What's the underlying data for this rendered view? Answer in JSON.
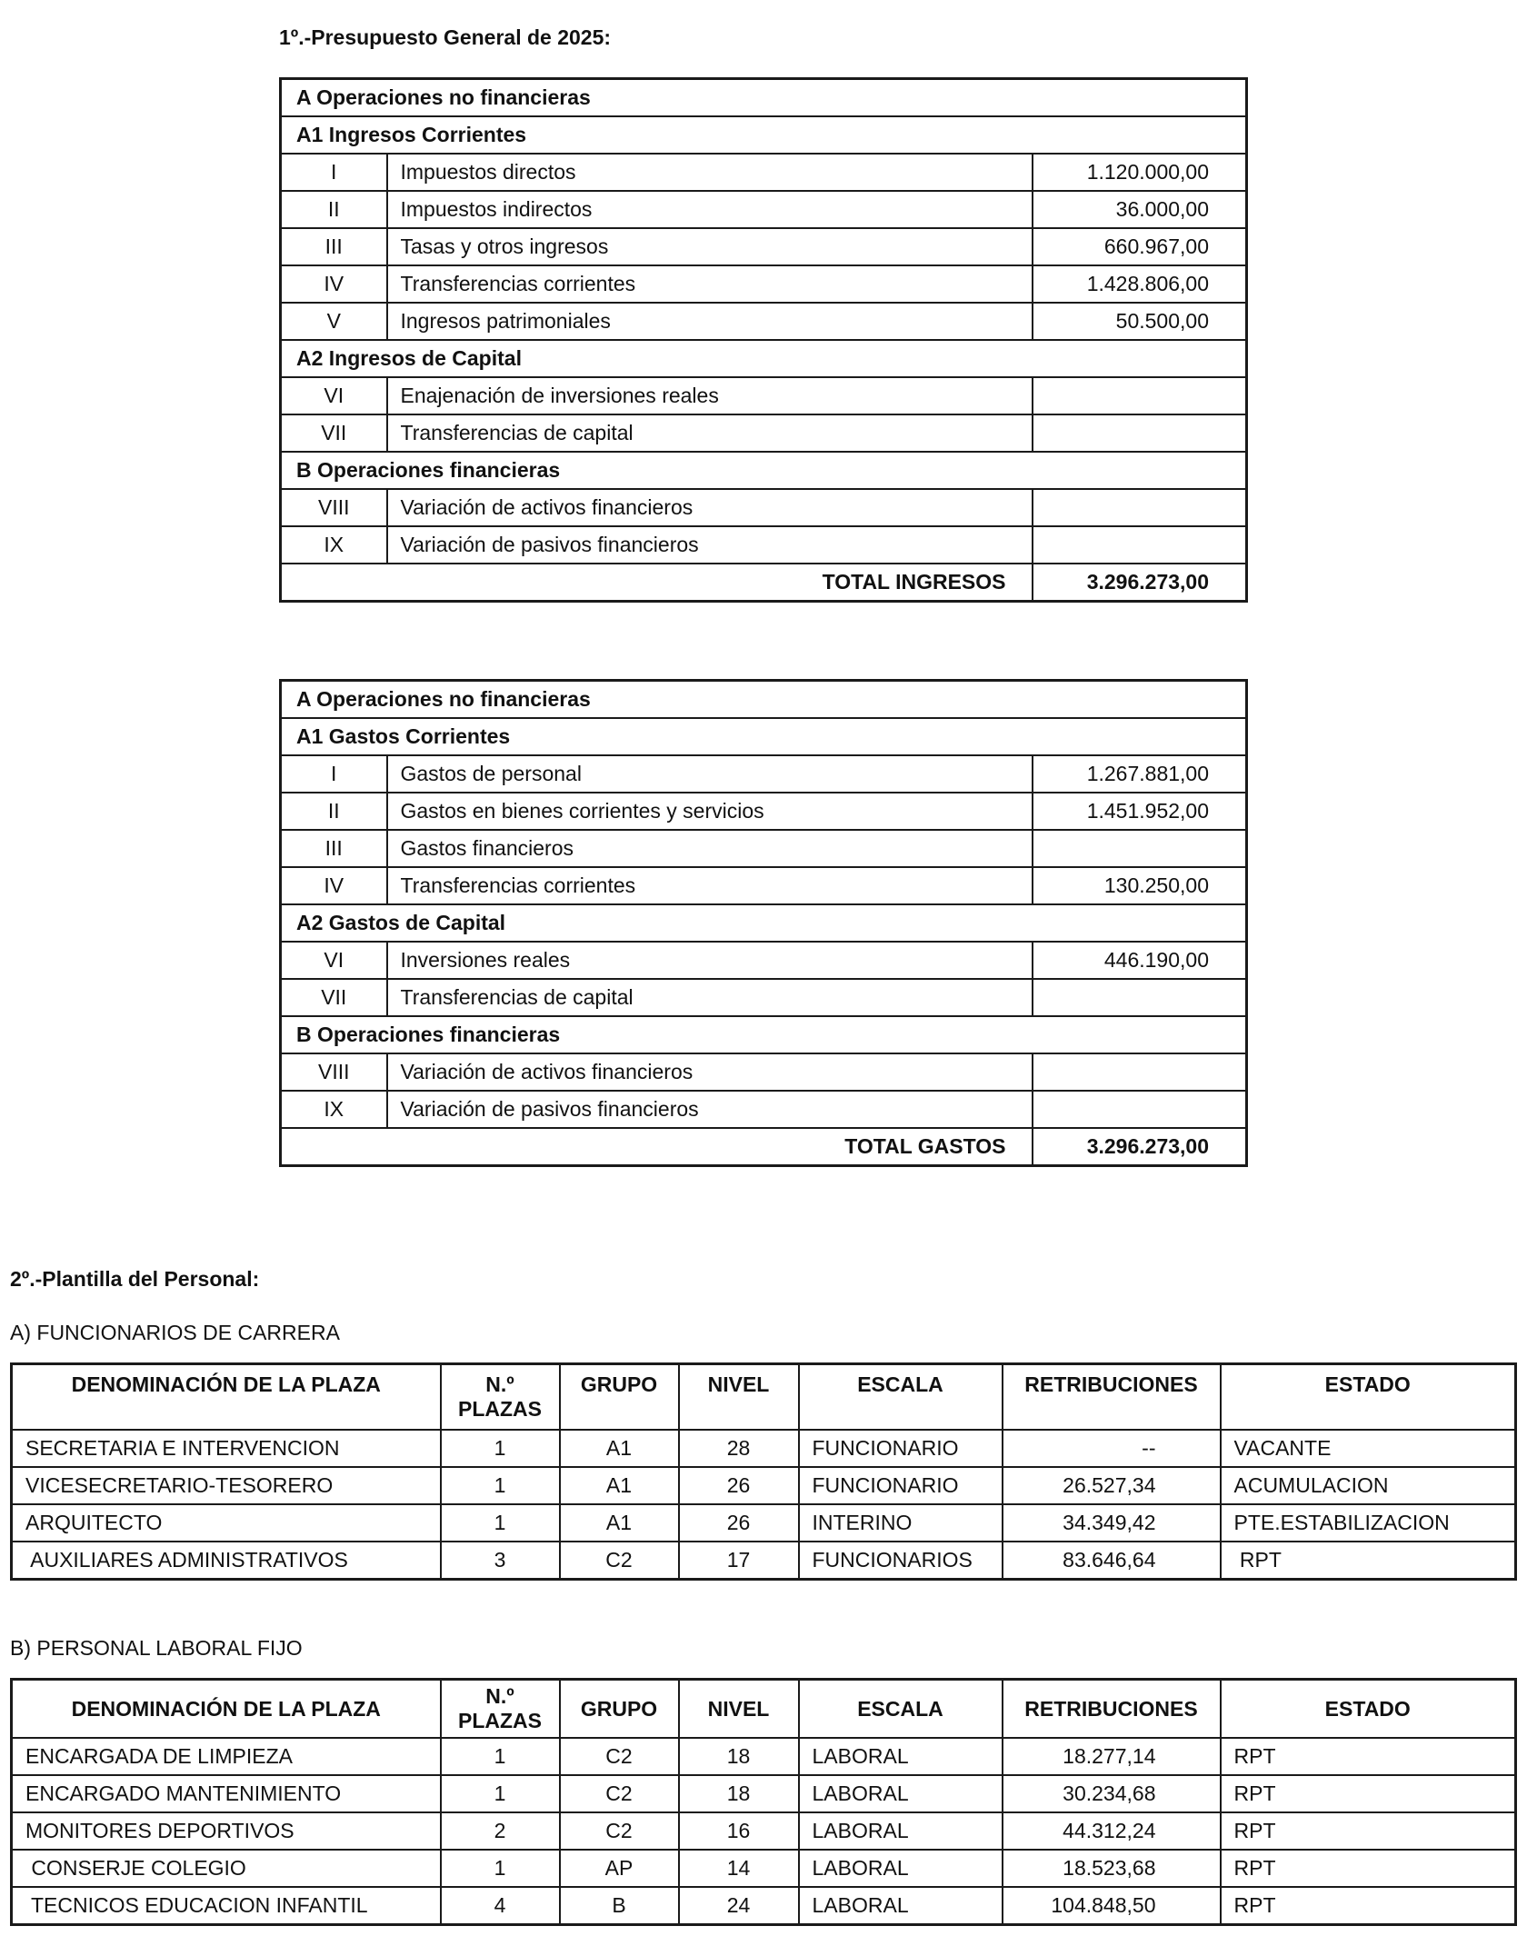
{
  "section1_title": "1º.-Presupuesto General de 2025:",
  "ingresos": {
    "rows": [
      {
        "type": "section",
        "label": "A  Operaciones no financieras"
      },
      {
        "type": "section",
        "label": "A1  Ingresos Corrientes"
      },
      {
        "type": "item",
        "code": "I",
        "desc": "Impuestos directos",
        "amount": "1.120.000,00"
      },
      {
        "type": "item",
        "code": "II",
        "desc": "Impuestos indirectos",
        "amount": "36.000,00"
      },
      {
        "type": "item",
        "code": "III",
        "desc": "Tasas y otros ingresos",
        "amount": "660.967,00"
      },
      {
        "type": "item",
        "code": "IV",
        "desc": "Transferencias corrientes",
        "amount": "1.428.806,00"
      },
      {
        "type": "item",
        "code": "V",
        "desc": "Ingresos patrimoniales",
        "amount": "50.500,00"
      },
      {
        "type": "section",
        "label": "A2  Ingresos de Capital"
      },
      {
        "type": "item",
        "code": "VI",
        "desc": "Enajenación de inversiones reales",
        "amount": ""
      },
      {
        "type": "item",
        "code": "VII",
        "desc": "Transferencias de capital",
        "amount": ""
      },
      {
        "type": "section",
        "label": "B  Operaciones financieras"
      },
      {
        "type": "item",
        "code": "VIII",
        "desc": "Variación de activos financieros",
        "amount": ""
      },
      {
        "type": "item",
        "code": "IX",
        "desc": "Variación de pasivos financieros",
        "amount": ""
      }
    ],
    "total_label": "TOTAL INGRESOS",
    "total": "3.296.273,00"
  },
  "gastos": {
    "rows": [
      {
        "type": "section",
        "label": "A  Operaciones no financieras"
      },
      {
        "type": "section",
        "label": "A1  Gastos Corrientes"
      },
      {
        "type": "item",
        "code": "I",
        "desc": "Gastos de personal",
        "amount": "1.267.881,00"
      },
      {
        "type": "item",
        "code": "II",
        "desc": "Gastos en bienes corrientes y servicios",
        "amount": "1.451.952,00"
      },
      {
        "type": "item",
        "code": "III",
        "desc": "Gastos financieros",
        "amount": ""
      },
      {
        "type": "item",
        "code": "IV",
        "desc": "Transferencias corrientes",
        "amount": "130.250,00"
      },
      {
        "type": "section",
        "label": "A2  Gastos de Capital"
      },
      {
        "type": "item",
        "code": "VI",
        "desc": "Inversiones reales",
        "amount": "446.190,00"
      },
      {
        "type": "item",
        "code": "VII",
        "desc": "Transferencias de capital",
        "amount": ""
      },
      {
        "type": "section",
        "label": "B  Operaciones financieras"
      },
      {
        "type": "item",
        "code": "VIII",
        "desc": "Variación de activos financieros",
        "amount": ""
      },
      {
        "type": "item",
        "code": "IX",
        "desc": "Variación de pasivos financieros",
        "amount": ""
      }
    ],
    "total_label": "TOTAL GASTOS",
    "total": "3.296.273,00"
  },
  "section2_title": "2º.-Plantilla del Personal:",
  "staff_headers": [
    "DENOMINACIÓN DE LA PLAZA",
    "N.º PLAZAS",
    "GRUPO",
    "NIVEL",
    "ESCALA",
    "RETRIBUCIONES",
    "ESTADO"
  ],
  "funcionarios": {
    "label": "A)  FUNCIONARIOS DE CARRERA",
    "rows": [
      [
        "SECRETARIA E INTERVENCION",
        "1",
        "A1",
        "28",
        "FUNCIONARIO",
        "--",
        "VACANTE"
      ],
      [
        "VICESECRETARIO-TESORERO",
        "1",
        "A1",
        "26",
        "FUNCIONARIO",
        "26.527,34",
        "ACUMULACION"
      ],
      [
        "ARQUITECTO",
        "1",
        "A1",
        "26",
        "INTERINO",
        "34.349,42",
        "PTE.ESTABILIZACION"
      ],
      [
        " AUXILIARES ADMINISTRATIVOS",
        "3",
        "C2",
        "17",
        "FUNCIONARIOS",
        "83.646,64",
        " RPT"
      ]
    ]
  },
  "laboral": {
    "label": "B)  PERSONAL LABORAL FIJO",
    "rows": [
      [
        "ENCARGADA DE LIMPIEZA",
        "1",
        "C2",
        "18",
        "LABORAL",
        "18.277,14",
        "RPT"
      ],
      [
        "ENCARGADO MANTENIMIENTO",
        "1",
        "C2",
        "18",
        "LABORAL",
        "30.234,68",
        "RPT"
      ],
      [
        "MONITORES DEPORTIVOS",
        "2",
        "C2",
        "16",
        "LABORAL",
        "44.312,24",
        "RPT"
      ],
      [
        " CONSERJE COLEGIO",
        "1",
        "AP",
        "14",
        "LABORAL",
        "18.523,68",
        "RPT"
      ],
      [
        " TECNICOS EDUCACION INFANTIL",
        "4",
        "B",
        "24",
        "LABORAL",
        "104.848,50",
        "RPT"
      ]
    ]
  }
}
